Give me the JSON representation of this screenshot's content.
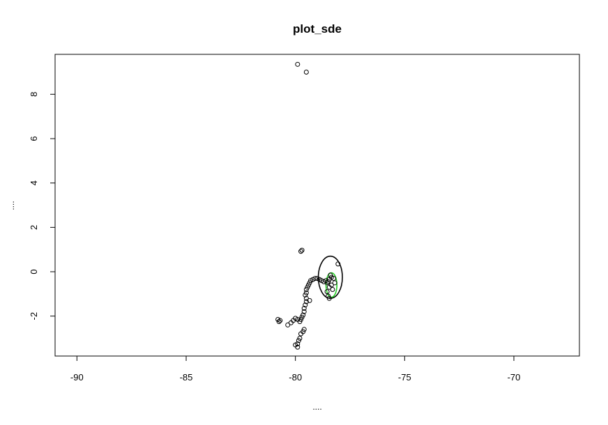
{
  "chart_data": {
    "type": "scatter",
    "title": "plot_sde",
    "xlabel": "....",
    "ylabel": "....",
    "xlim": [
      -91,
      -67
    ],
    "ylim": [
      -3.8,
      9.8
    ],
    "x_ticks": [
      -90,
      -85,
      -80,
      -75,
      -70
    ],
    "y_ticks": [
      -2,
      0,
      2,
      4,
      6,
      8
    ],
    "x_tick_labels": [
      "-90",
      "-85",
      "-80",
      "-75",
      "-70"
    ],
    "y_tick_labels": [
      "-2",
      "0",
      "2",
      "4",
      "6",
      "8"
    ],
    "grid": false,
    "legend": "none",
    "point_marker": "open-circle",
    "colors": {
      "points": "#000000",
      "ellipse_outer": "#000000",
      "ellipse_inner": "#22cc22",
      "frame": "#000000",
      "background": "#ffffff"
    },
    "points": [
      [
        -79.9,
        9.35
      ],
      [
        -79.5,
        9.0
      ],
      [
        -79.7,
        0.97
      ],
      [
        -79.75,
        0.92
      ],
      [
        -78.05,
        0.35
      ],
      [
        -78.4,
        -0.15
      ],
      [
        -78.35,
        -0.25
      ],
      [
        -78.45,
        -0.35
      ],
      [
        -78.5,
        -0.45
      ],
      [
        -78.55,
        -0.5
      ],
      [
        -78.6,
        -0.4
      ],
      [
        -78.7,
        -0.45
      ],
      [
        -78.8,
        -0.4
      ],
      [
        -78.9,
        -0.35
      ],
      [
        -79.0,
        -0.3
      ],
      [
        -79.1,
        -0.3
      ],
      [
        -79.2,
        -0.35
      ],
      [
        -79.3,
        -0.4
      ],
      [
        -79.35,
        -0.5
      ],
      [
        -79.4,
        -0.6
      ],
      [
        -79.45,
        -0.7
      ],
      [
        -79.5,
        -0.8
      ],
      [
        -79.5,
        -0.95
      ],
      [
        -79.55,
        -1.05
      ],
      [
        -79.5,
        -1.2
      ],
      [
        -79.5,
        -1.35
      ],
      [
        -79.55,
        -1.5
      ],
      [
        -79.6,
        -1.65
      ],
      [
        -79.6,
        -1.8
      ],
      [
        -79.65,
        -1.95
      ],
      [
        -79.7,
        -2.05
      ],
      [
        -79.75,
        -2.15
      ],
      [
        -79.8,
        -2.25
      ],
      [
        -79.9,
        -2.15
      ],
      [
        -80.0,
        -2.1
      ],
      [
        -80.1,
        -2.2
      ],
      [
        -80.2,
        -2.3
      ],
      [
        -80.35,
        -2.4
      ],
      [
        -80.7,
        -2.2
      ],
      [
        -80.75,
        -2.25
      ],
      [
        -80.8,
        -2.15
      ],
      [
        -79.6,
        -2.6
      ],
      [
        -79.65,
        -2.7
      ],
      [
        -79.75,
        -2.8
      ],
      [
        -79.8,
        -3.0
      ],
      [
        -79.85,
        -3.1
      ],
      [
        -79.9,
        -3.25
      ],
      [
        -80.0,
        -3.3
      ],
      [
        -79.9,
        -3.4
      ],
      [
        -79.35,
        -1.3
      ],
      [
        -78.55,
        -0.9
      ],
      [
        -78.5,
        -1.1
      ],
      [
        -78.45,
        -1.2
      ],
      [
        -78.45,
        -0.7
      ],
      [
        -78.35,
        -0.6
      ],
      [
        -78.3,
        -0.8
      ],
      [
        -78.2,
        -0.5
      ],
      [
        -78.25,
        -0.3
      ]
    ],
    "ellipses": [
      {
        "name": "sde",
        "center": [
          -78.4,
          -0.25
        ],
        "rx": 0.55,
        "ry": 0.95,
        "color": "#000000"
      },
      {
        "name": "sde-inner",
        "center": [
          -78.35,
          -0.6
        ],
        "rx": 0.25,
        "ry": 0.55,
        "color": "#22cc22"
      }
    ]
  }
}
